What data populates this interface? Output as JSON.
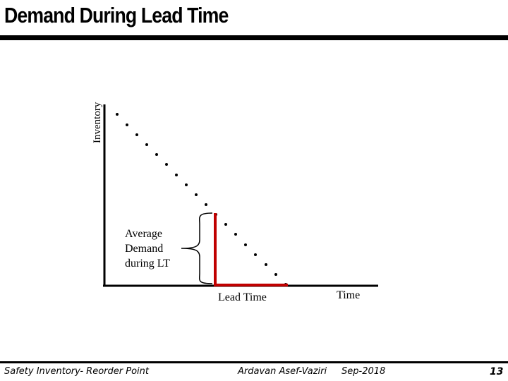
{
  "slide": {
    "title": "Demand During Lead Time"
  },
  "diagram": {
    "y_axis_label": "Inventory",
    "x_axis_label": "Time",
    "lead_time_label": "Lead Time",
    "avg_demand_label": [
      "Average",
      "Demand",
      "during LT"
    ],
    "colors": {
      "axis": "#000000",
      "points": "#000000",
      "highlight": "#c00000"
    },
    "icons": [
      "left-brace-icon"
    ]
  },
  "footer": {
    "left": "Safety Inventory- Reorder Point",
    "author": "Ardavan Asef-Vaziri",
    "date": "Sep-2018",
    "page": "13"
  }
}
